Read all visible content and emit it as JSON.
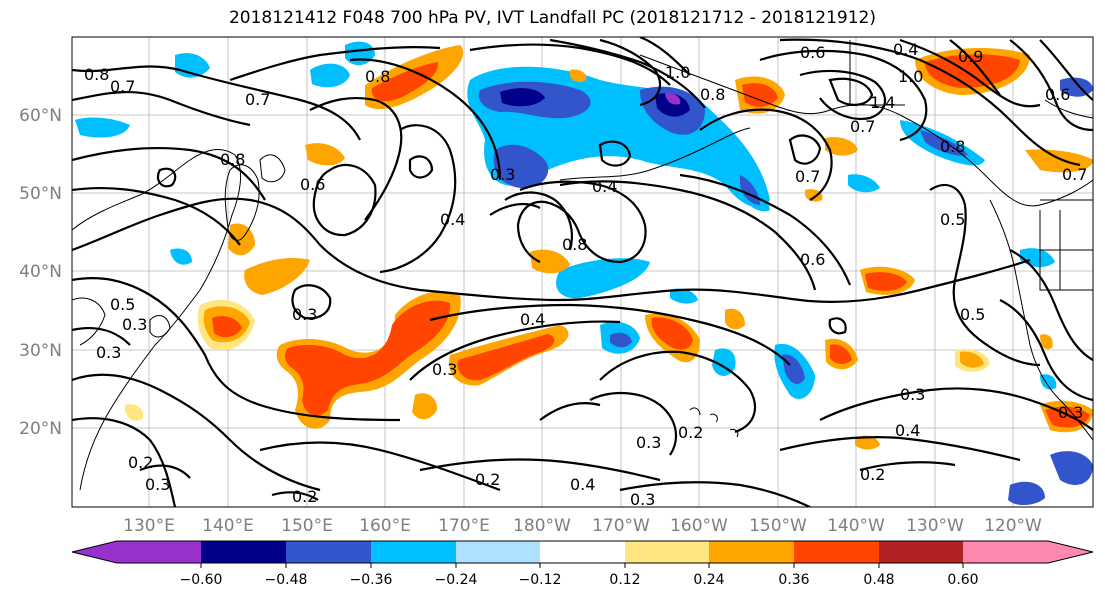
{
  "title": "2018121412 F048 700 hPa PV, IVT Landfall PC (2018121712 - 2018121912)",
  "map": {
    "lat_labels": [
      "60°N",
      "50°N",
      "40°N",
      "30°N",
      "20°N"
    ],
    "lon_labels": [
      "130°E",
      "140°E",
      "150°E",
      "160°E",
      "170°E",
      "180°W",
      "170°W",
      "160°W",
      "150°W",
      "140°W",
      "130°W",
      "120°W"
    ],
    "contour_labels": [
      "0.8",
      "0.7",
      "0.7",
      "0.8",
      "0.8",
      "1.0",
      "0.6",
      "0.4",
      "0.8",
      "1.4",
      "1.0",
      "0.9",
      "0.7",
      "0.8",
      "0.6",
      "0.7",
      "0.5",
      "0.6",
      "0.3",
      "0.7",
      "0.8",
      "0.4",
      "0.6",
      "0.4",
      "0.3",
      "0.4",
      "0.3",
      "0.5",
      "0.5",
      "0.3",
      "0.3",
      "0.2",
      "0.3",
      "0.4",
      "0.2",
      "0.3",
      "0.4",
      "0.2",
      "0.2",
      "0.2",
      "0.3",
      "0.3",
      "0.3"
    ],
    "colors": {
      "strong_negative": "#00008b",
      "negative": "#3355cc",
      "weak_negative": "#00bfff",
      "faint_negative": "#b0e0ff",
      "faint_positive": "#ffe680",
      "positive": "#ffa500",
      "strong_positive": "#ff4500",
      "very_strong_positive": "#b22222"
    }
  },
  "colorbar": {
    "tick_labels": [
      "−0.60",
      "−0.48",
      "−0.36",
      "−0.24",
      "−0.12",
      "0.12",
      "0.24",
      "0.36",
      "0.48",
      "0.60"
    ],
    "bins": [
      "#9932cc",
      "#00008b",
      "#3355cc",
      "#00bfff",
      "#b0e0ff",
      "#ffffff",
      "#ffe680",
      "#ffa500",
      "#ff4500",
      "#b22222",
      "#ff88b0"
    ]
  }
}
